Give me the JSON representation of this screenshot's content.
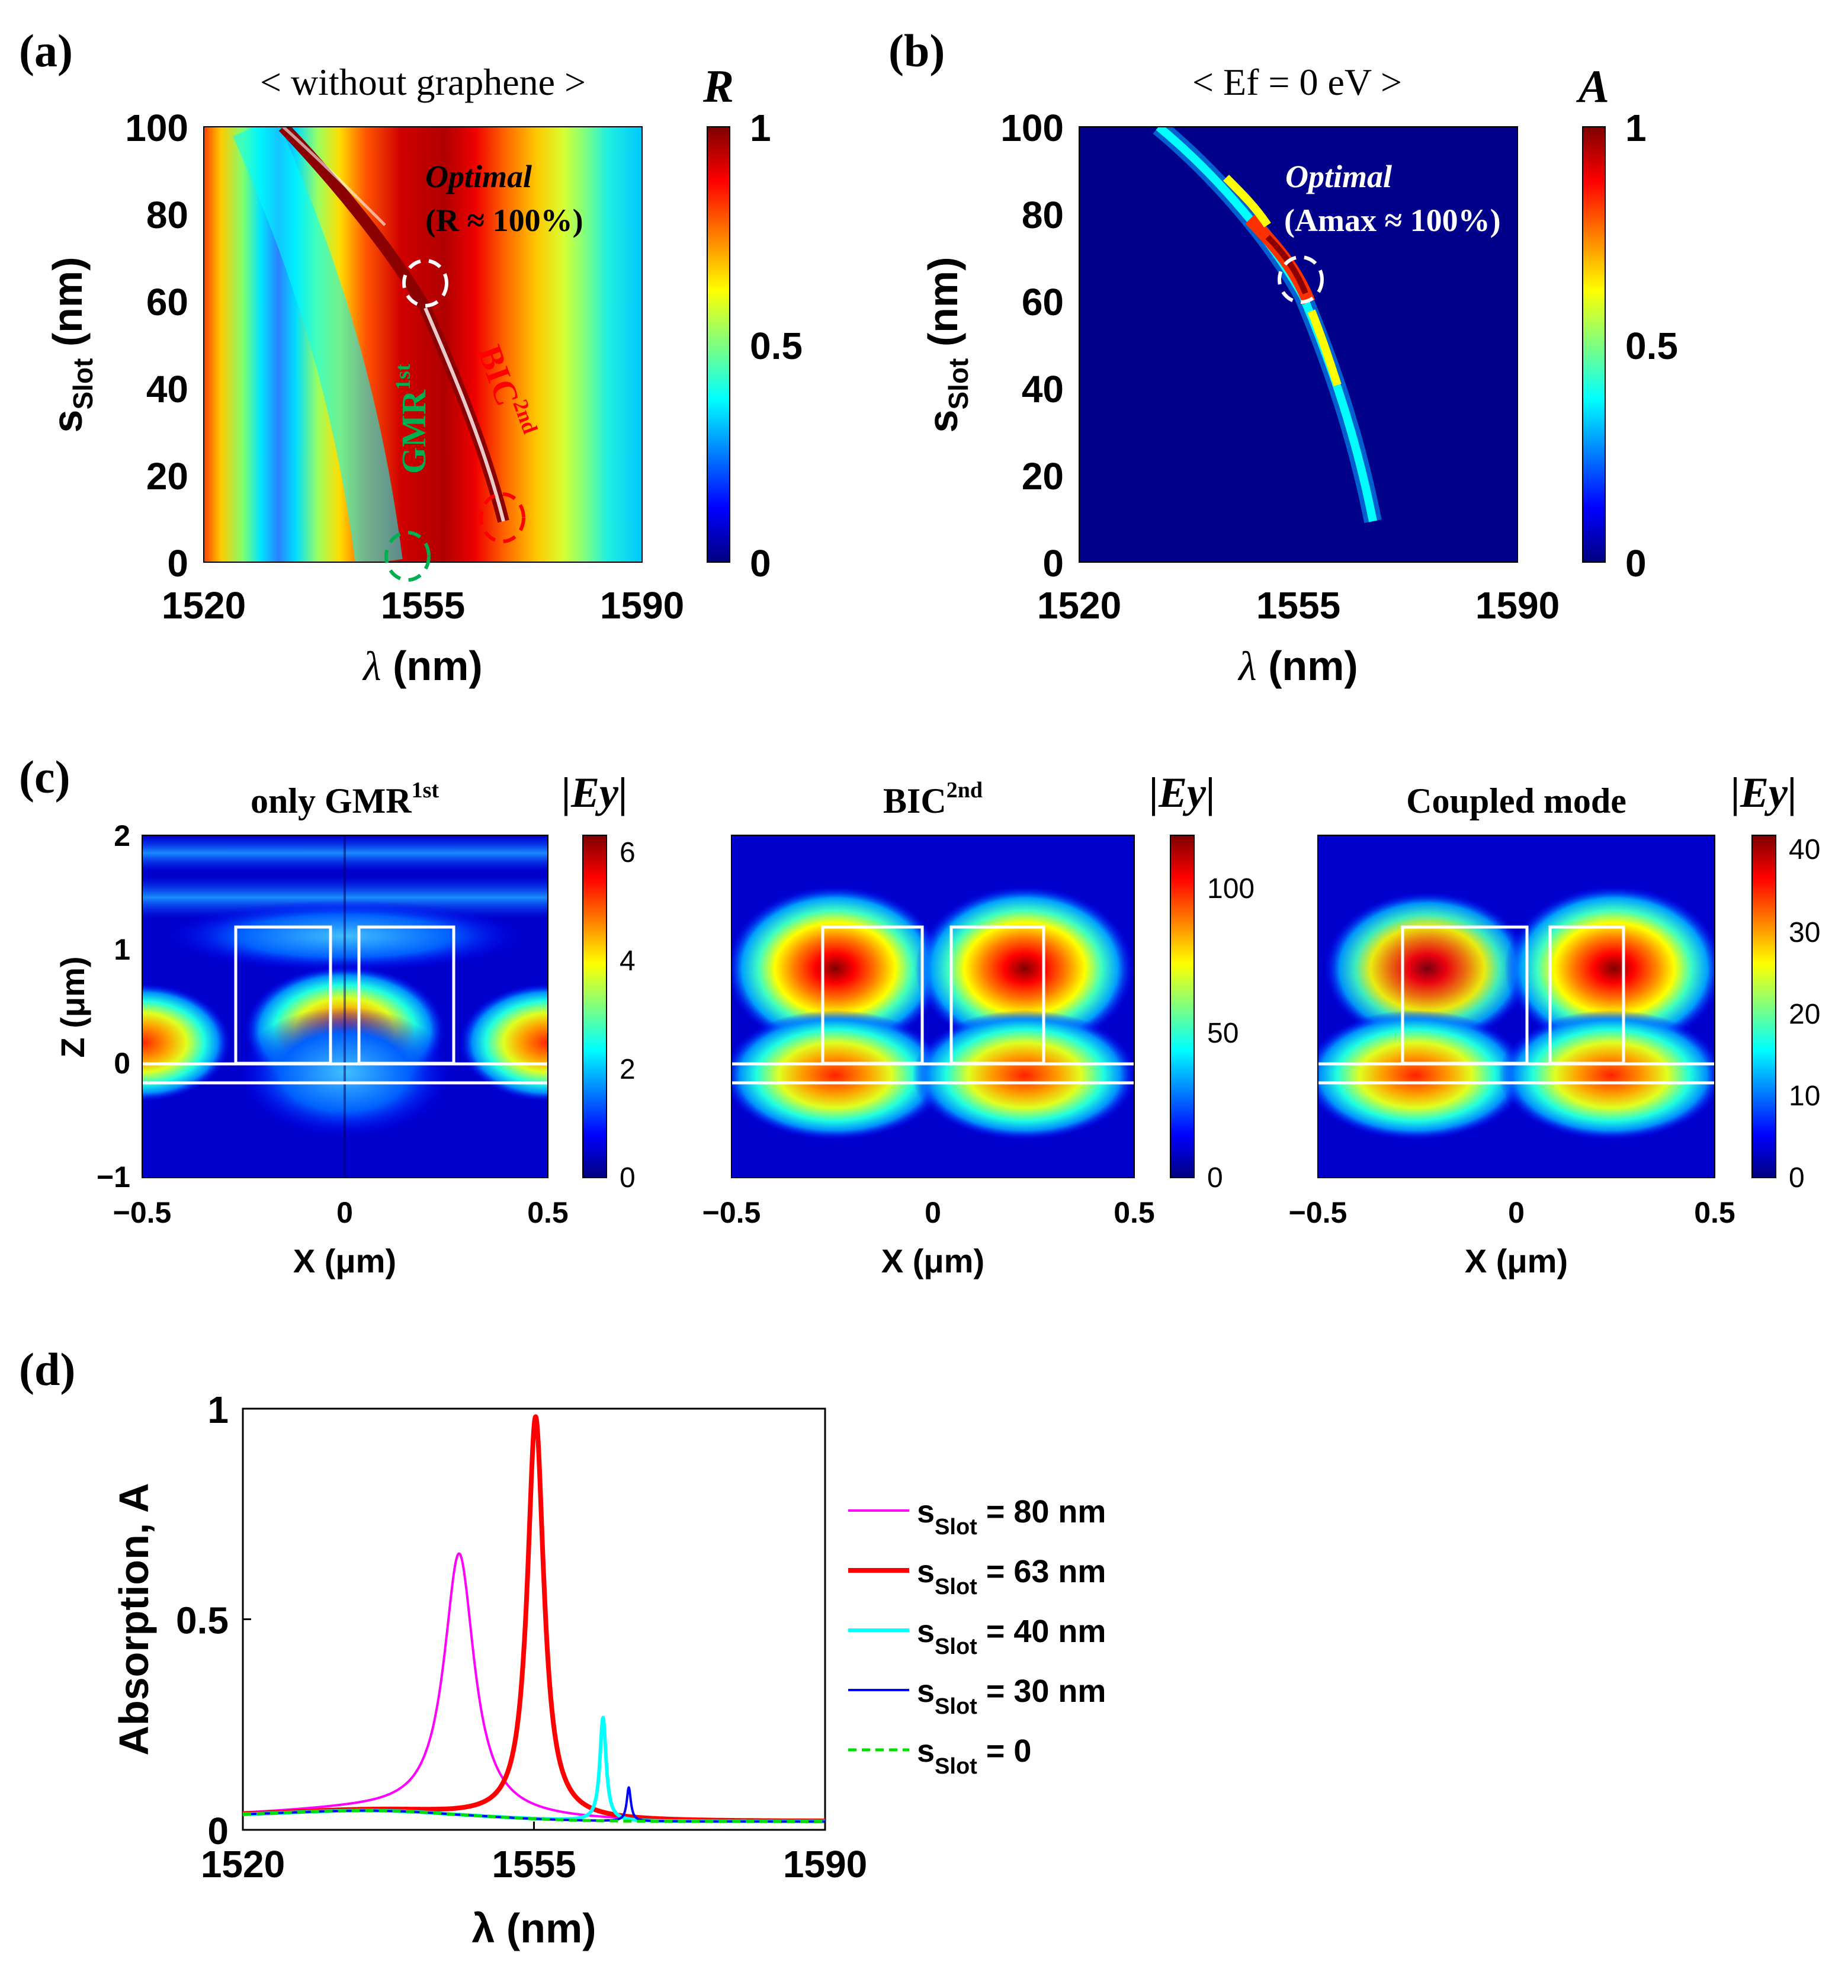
{
  "panels": {
    "a": {
      "label": "(a)",
      "title": "< without graphene >",
      "cb_title": "R",
      "cb_ticks": [
        "1",
        "0.5",
        "0"
      ],
      "ann_optimal": "Optimal",
      "ann_optimal2": "(R ≈ 100%)",
      "ann_gmr": "GMR",
      "ann_gmr_sup": "1st",
      "ann_bic": "BIC",
      "ann_bic_sup": "2nd"
    },
    "b": {
      "label": "(b)",
      "title": "< Ef = 0 eV >",
      "cb_title": "A",
      "cb_ticks": [
        "1",
        "0.5",
        "0"
      ],
      "ann_optimal": "Optimal",
      "ann_optimal2": "(Amax ≈ 100%)"
    },
    "c": {
      "label": "(c)",
      "maps": [
        {
          "title": "only GMR",
          "title_sup": "1st",
          "cb_title": "|Ey|",
          "cb_max": 6.3,
          "cb_ticks": [
            "6",
            "4",
            "2",
            "0"
          ]
        },
        {
          "title": "BIC",
          "title_sup": "2nd",
          "cb_title": "|Ey|",
          "cb_max": 118,
          "cb_ticks": [
            "100",
            "50",
            "0"
          ]
        },
        {
          "title": "Coupled mode",
          "title_sup": "",
          "cb_title": "|Ey|",
          "cb_max": 41,
          "cb_ticks": [
            "40",
            "30",
            "20",
            "10",
            "0"
          ]
        }
      ],
      "x_ticks": [
        "−0.5",
        "0",
        "0.5"
      ],
      "z_ticks": [
        "2",
        "1",
        "0",
        "−1"
      ],
      "xlabel": "X (μm)",
      "ylabel": "Z (μm)"
    },
    "d": {
      "label": "(d)"
    }
  },
  "colorbar_colors": [
    "#00007f",
    "#0000ff",
    "#007fff",
    "#00ffff",
    "#7fff7f",
    "#ffff00",
    "#ff7f00",
    "#ff0000",
    "#7f0000"
  ],
  "chart_data": [
    {
      "type": "heatmap",
      "panel": "a",
      "title": "< without graphene >",
      "xlabel": "λ (nm)",
      "ylabel": "sSlot (nm)",
      "xlim": [
        1520,
        1590
      ],
      "ylim": [
        0,
        100
      ],
      "x_ticks": [
        1520,
        1555,
        1590
      ],
      "y_ticks": [
        0,
        20,
        40,
        60,
        80,
        100
      ],
      "colorbar": {
        "label": "R",
        "range": [
          0,
          1
        ],
        "ticks": [
          0,
          0.5,
          1
        ]
      },
      "annotations": [
        {
          "text": "Optimal (R ≈ 100%)",
          "lambda": 1556,
          "s": 64
        },
        {
          "text": "GMR 1st",
          "lambda": 1555,
          "s": 0
        },
        {
          "text": "BIC 2nd",
          "lambda": 1566,
          "s": 10
        }
      ]
    },
    {
      "type": "heatmap",
      "panel": "b",
      "title": "< Ef = 0 eV >",
      "xlabel": "λ (nm)",
      "ylabel": "sSlot (nm)",
      "xlim": [
        1520,
        1590
      ],
      "ylim": [
        0,
        100
      ],
      "x_ticks": [
        1520,
        1555,
        1590
      ],
      "y_ticks": [
        0,
        20,
        40,
        60,
        80,
        100
      ],
      "colorbar": {
        "label": "A",
        "range": [
          0,
          1
        ],
        "ticks": [
          0,
          0.5,
          1
        ]
      },
      "annotations": [
        {
          "text": "Optimal (Amax ≈ 100%)",
          "lambda": 1555,
          "s": 64
        }
      ]
    },
    {
      "type": "line",
      "panel": "d",
      "xlabel": "λ (nm)",
      "ylabel": "Absorption, A",
      "xlim": [
        1520,
        1590
      ],
      "ylim": [
        0,
        1
      ],
      "x_ticks": [
        1520,
        1555,
        1590
      ],
      "y_ticks": [
        0,
        0.5,
        1
      ],
      "series": [
        {
          "name": "sSlot = 80 nm",
          "sub": "Slot",
          "pre": "s",
          "post": " = 80 nm",
          "color": "#ff00ff",
          "width": 4,
          "dash": "",
          "peak": 1546,
          "amp": 0.62,
          "gamma": 2.2
        },
        {
          "name": "sSlot = 63 nm",
          "sub": "Slot",
          "pre": "s",
          "post": " = 63 nm",
          "color": "#ff0000",
          "width": 8,
          "dash": "",
          "peak": 1555.2,
          "amp": 0.955,
          "gamma": 1.2
        },
        {
          "name": "sSlot = 40 nm",
          "sub": "Slot",
          "pre": "s",
          "post": " = 40 nm",
          "color": "#00ffff",
          "width": 6,
          "dash": "",
          "peak": 1563.3,
          "amp": 0.245,
          "gamma": 0.45
        },
        {
          "name": "sSlot = 30 nm",
          "sub": "Slot",
          "pre": "s",
          "post": " = 30 nm",
          "color": "#0000ff",
          "width": 4,
          "dash": "",
          "peak": 1566.4,
          "amp": 0.08,
          "gamma": 0.3
        },
        {
          "name": "sSlot = 0",
          "sub": "Slot",
          "pre": "s",
          "post": " = 0",
          "color": "#00dd00",
          "width": 5,
          "dash": "14 9",
          "peak": null,
          "amp": 0,
          "gamma": 1
        }
      ]
    }
  ]
}
